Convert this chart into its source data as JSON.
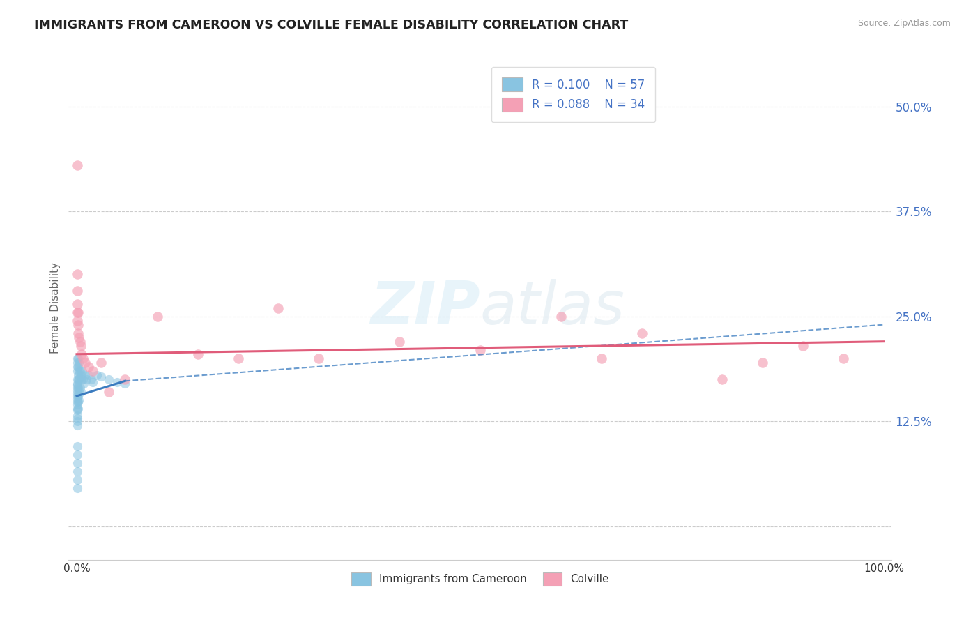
{
  "title": "IMMIGRANTS FROM CAMEROON VS COLVILLE FEMALE DISABILITY CORRELATION CHART",
  "source": "Source: ZipAtlas.com",
  "ylabel": "Female Disability",
  "color_blue": "#89c4e1",
  "color_pink": "#f4a0b5",
  "line_blue": "#3a7bbf",
  "line_pink": "#e05c7a",
  "grid_color": "#cccccc",
  "bg_color": "#ffffff",
  "tick_color": "#4472c4",
  "blue_scatter_x": [
    0.001,
    0.001,
    0.001,
    0.001,
    0.001,
    0.001,
    0.001,
    0.001,
    0.001,
    0.001,
    0.001,
    0.001,
    0.001,
    0.001,
    0.001,
    0.001,
    0.001,
    0.001,
    0.001,
    0.001,
    0.002,
    0.002,
    0.002,
    0.002,
    0.002,
    0.002,
    0.002,
    0.002,
    0.003,
    0.003,
    0.003,
    0.003,
    0.003,
    0.004,
    0.004,
    0.005,
    0.005,
    0.006,
    0.007,
    0.008,
    0.009,
    0.01,
    0.012,
    0.015,
    0.018,
    0.02,
    0.025,
    0.03,
    0.04,
    0.05,
    0.06,
    0.001,
    0.001,
    0.001,
    0.001,
    0.001,
    0.001
  ],
  "blue_scatter_y": [
    0.2,
    0.195,
    0.19,
    0.185,
    0.175,
    0.17,
    0.168,
    0.165,
    0.162,
    0.158,
    0.155,
    0.152,
    0.148,
    0.145,
    0.14,
    0.138,
    0.132,
    0.128,
    0.125,
    0.12,
    0.2,
    0.19,
    0.18,
    0.175,
    0.165,
    0.155,
    0.148,
    0.14,
    0.195,
    0.185,
    0.175,
    0.16,
    0.15,
    0.185,
    0.165,
    0.18,
    0.16,
    0.175,
    0.185,
    0.175,
    0.17,
    0.18,
    0.175,
    0.18,
    0.175,
    0.172,
    0.18,
    0.178,
    0.175,
    0.172,
    0.17,
    0.095,
    0.085,
    0.075,
    0.065,
    0.055,
    0.045
  ],
  "pink_scatter_x": [
    0.001,
    0.001,
    0.001,
    0.001,
    0.001,
    0.001,
    0.002,
    0.002,
    0.002,
    0.003,
    0.004,
    0.005,
    0.006,
    0.008,
    0.01,
    0.015,
    0.02,
    0.03,
    0.04,
    0.06,
    0.1,
    0.15,
    0.2,
    0.25,
    0.3,
    0.4,
    0.5,
    0.6,
    0.65,
    0.7,
    0.8,
    0.85,
    0.9,
    0.95
  ],
  "pink_scatter_y": [
    0.43,
    0.3,
    0.28,
    0.265,
    0.255,
    0.245,
    0.255,
    0.24,
    0.23,
    0.225,
    0.22,
    0.215,
    0.205,
    0.2,
    0.195,
    0.19,
    0.185,
    0.195,
    0.16,
    0.175,
    0.25,
    0.205,
    0.2,
    0.26,
    0.2,
    0.22,
    0.21,
    0.25,
    0.2,
    0.23,
    0.175,
    0.195,
    0.215,
    0.2
  ],
  "blue_line_x0": 0.0,
  "blue_line_x_solid_end": 0.06,
  "blue_line_x1": 1.0,
  "blue_line_y0": 0.155,
  "blue_line_y_solid_end": 0.173,
  "blue_line_y1": 0.24,
  "pink_line_x0": 0.0,
  "pink_line_x1": 1.0,
  "pink_line_y0": 0.205,
  "pink_line_y1": 0.22,
  "yticks": [
    0.0,
    0.125,
    0.25,
    0.375,
    0.5
  ],
  "ytick_labels": [
    "",
    "12.5%",
    "25.0%",
    "37.5%",
    "50.0%"
  ],
  "xlim": [
    -0.01,
    1.01
  ],
  "ylim": [
    -0.04,
    0.56
  ]
}
